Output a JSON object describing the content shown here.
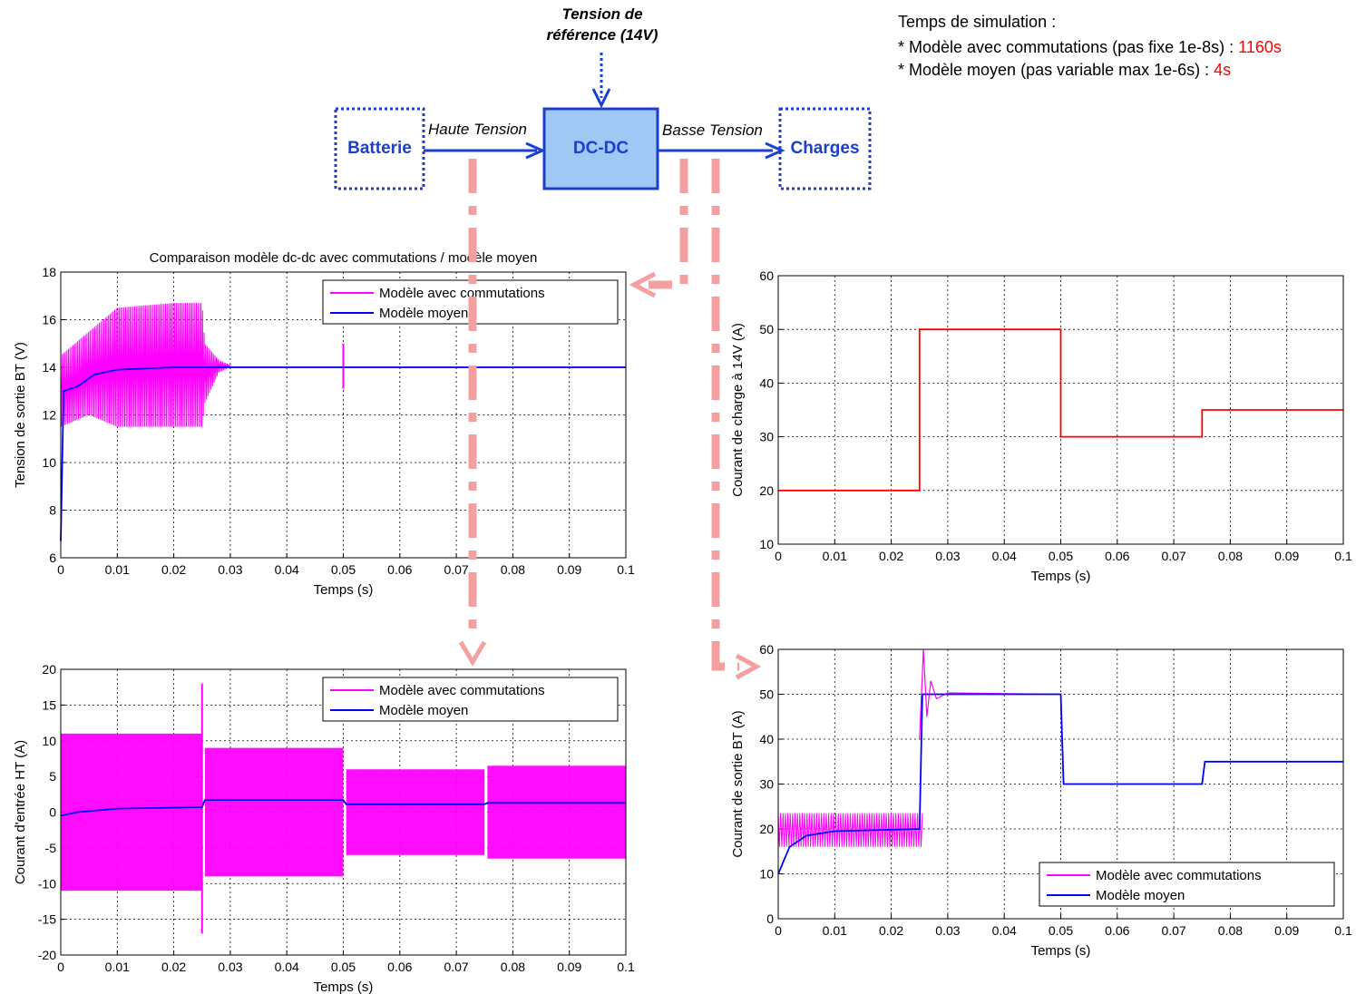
{
  "diagram": {
    "ref_label_line1": "Tension de",
    "ref_label_line2": "référence (14V)",
    "battery": "Batterie",
    "converter": "DC-DC",
    "loads": "Charges",
    "hv_label": "Haute Tension",
    "lv_label": "Basse Tension"
  },
  "simulation": {
    "title": "Temps de simulation :",
    "line1_text": "* Modèle avec commutations (pas fixe 1e-8s) : ",
    "line1_value": "1160s",
    "line2_text": "* Modèle moyen (pas variable max 1e-6s) : ",
    "line2_value": "4s",
    "value_color": "#ff0000"
  },
  "colors": {
    "switching": "#ff00ff",
    "average": "#0000ff",
    "load": "#ff0000",
    "diagram_blue": "#1a3fd0",
    "arrow_pink": "#f4a0a0"
  },
  "chart_data": [
    {
      "id": "vout",
      "type": "line",
      "title": "Comparaison modèle dc-dc avec commutations / modèle moyen",
      "xlabel": "Temps (s)",
      "ylabel": "Tension de sortie BT (V)",
      "xlim": [
        0,
        0.1
      ],
      "ylim": [
        6,
        18
      ],
      "xticks": [
        "0",
        "0.01",
        "0.02",
        "0.03",
        "0.04",
        "0.05",
        "0.06",
        "0.07",
        "0.08",
        "0.09",
        "0.1"
      ],
      "yticks": [
        "6",
        "8",
        "10",
        "12",
        "14",
        "16",
        "18"
      ],
      "grid": true,
      "legend": "top-right",
      "series": [
        {
          "name": "Modèle avec commutations",
          "color": "#ff00ff",
          "steady": [
            [
              0,
              14
            ],
            [
              0.1,
              14
            ]
          ],
          "ripple_env": [
            [
              0,
              11.5,
              14.5
            ],
            [
              0.005,
              12,
              15.5
            ],
            [
              0.01,
              11.5,
              16.5
            ],
            [
              0.02,
              11.5,
              16.7
            ],
            [
              0.025,
              11.5,
              16.7
            ],
            [
              0.0255,
              12.5,
              15
            ],
            [
              0.028,
              13.8,
              14.3
            ],
            [
              0.03,
              14,
              14.1
            ]
          ]
        },
        {
          "name": "Modèle moyen",
          "color": "#0000ff",
          "points": [
            [
              0,
              6.7
            ],
            [
              0.0005,
              13
            ],
            [
              0.003,
              13.2
            ],
            [
              0.006,
              13.7
            ],
            [
              0.01,
              13.9
            ],
            [
              0.02,
              14
            ],
            [
              0.025,
              14
            ],
            [
              0.05,
              14
            ],
            [
              0.1,
              14
            ]
          ]
        }
      ]
    },
    {
      "id": "iload",
      "type": "line",
      "xlabel": "Temps (s)",
      "ylabel": "Courant de charge à 14V (A)",
      "xlim": [
        0,
        0.1
      ],
      "ylim": [
        10,
        60
      ],
      "xticks": [
        "0",
        "0.01",
        "0.02",
        "0.03",
        "0.04",
        "0.05",
        "0.06",
        "0.07",
        "0.08",
        "0.09",
        "0.1"
      ],
      "yticks": [
        "10",
        "20",
        "30",
        "40",
        "50",
        "60"
      ],
      "grid": true,
      "series": [
        {
          "color": "#ff0000",
          "points": [
            [
              0,
              20
            ],
            [
              0.025,
              20
            ],
            [
              0.025,
              50
            ],
            [
              0.05,
              50
            ],
            [
              0.05,
              30
            ],
            [
              0.075,
              30
            ],
            [
              0.075,
              35
            ],
            [
              0.1,
              35
            ]
          ]
        }
      ]
    },
    {
      "id": "iin",
      "type": "line",
      "xlabel": "Temps (s)",
      "ylabel": "Courant d'entrée HT (A)",
      "xlim": [
        0,
        0.1
      ],
      "ylim": [
        -20,
        20
      ],
      "xticks": [
        "0",
        "0.01",
        "0.02",
        "0.03",
        "0.04",
        "0.05",
        "0.06",
        "0.07",
        "0.08",
        "0.09",
        "0.1"
      ],
      "yticks": [
        "-20",
        "-15",
        "-10",
        "-5",
        "0",
        "5",
        "10",
        "15",
        "20"
      ],
      "grid": true,
      "legend": "top-right",
      "series": [
        {
          "name": "Modèle avec commutations",
          "color": "#ff00ff",
          "band": [
            [
              0,
              -11,
              11
            ],
            [
              0.025,
              -11,
              12
            ],
            [
              0.0255,
              -9,
              9
            ],
            [
              0.05,
              -9,
              9
            ],
            [
              0.0505,
              -6,
              6
            ],
            [
              0.075,
              -6,
              6
            ],
            [
              0.0755,
              -6.5,
              6.5
            ],
            [
              0.1,
              -6.5,
              6.5
            ]
          ]
        },
        {
          "name": "Modèle moyen",
          "color": "#0000ff",
          "points": [
            [
              0,
              -0.5
            ],
            [
              0.003,
              0
            ],
            [
              0.01,
              0.5
            ],
            [
              0.025,
              0.7
            ],
            [
              0.0255,
              1.7
            ],
            [
              0.05,
              1.7
            ],
            [
              0.0505,
              1.1
            ],
            [
              0.075,
              1.1
            ],
            [
              0.0755,
              1.3
            ],
            [
              0.1,
              1.3
            ]
          ]
        }
      ]
    },
    {
      "id": "iout",
      "type": "line",
      "xlabel": "Temps (s)",
      "ylabel": "Courant de sortie BT (A)",
      "xlim": [
        0,
        0.1
      ],
      "ylim": [
        0,
        60
      ],
      "xticks": [
        "0",
        "0.01",
        "0.02",
        "0.03",
        "0.04",
        "0.05",
        "0.06",
        "0.07",
        "0.08",
        "0.09",
        "0.1"
      ],
      "yticks": [
        "0",
        "10",
        "20",
        "30",
        "40",
        "50",
        "60"
      ],
      "grid": true,
      "legend": "bottom-right",
      "series": [
        {
          "name": "Modèle avec commutations",
          "color": "#ff00ff",
          "band": [
            [
              0,
              16,
              22
            ],
            [
              0.01,
              16,
              23.5
            ],
            [
              0.025,
              16,
              23.5
            ],
            [
              0.0255,
              40,
              60
            ],
            [
              0.027,
              48,
              52
            ],
            [
              0.03,
              49.8,
              50.2
            ],
            [
              0.05,
              49.9,
              50.1
            ],
            [
              0.1,
              35,
              35
            ]
          ]
        },
        {
          "name": "Modèle moyen",
          "color": "#0000ff",
          "points": [
            [
              0,
              10
            ],
            [
              0.002,
              16
            ],
            [
              0.005,
              18.5
            ],
            [
              0.01,
              19.5
            ],
            [
              0.025,
              20
            ],
            [
              0.0255,
              50
            ],
            [
              0.05,
              50
            ],
            [
              0.0505,
              30
            ],
            [
              0.075,
              30
            ],
            [
              0.0755,
              35
            ],
            [
              0.1,
              35
            ]
          ]
        }
      ]
    }
  ]
}
